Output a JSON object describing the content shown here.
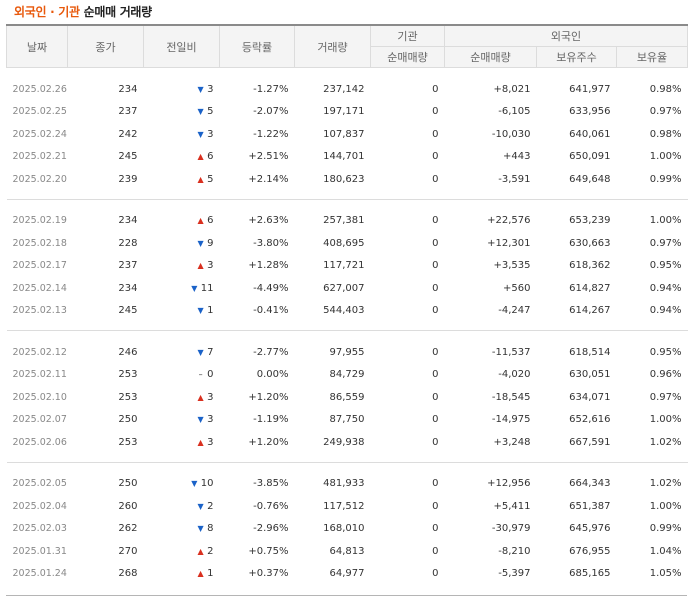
{
  "title": {
    "part1": "외국인 · 기관",
    "part2": " 순매매 거래량"
  },
  "headers": {
    "date": "날짜",
    "close": "종가",
    "change": "전일비",
    "rate": "등락률",
    "volume": "거래량",
    "institution": "기관",
    "foreign": "외국인",
    "inst_net": "순매매량",
    "foreign_net": "순매매량",
    "foreign_hold": "보유주수",
    "foreign_ratio": "보유율"
  },
  "colors": {
    "up": "#d9301f",
    "down": "#1a62c8",
    "title_accent": "#e8590c"
  },
  "groups": [
    {
      "rows": [
        {
          "date": "2025.02.26",
          "close": "234",
          "dir": "down",
          "change": "3",
          "rate": "-1.27%",
          "volume": "237,142",
          "inst": "0",
          "fnet": "+8,021",
          "fhold": "641,977",
          "fratio": "0.98%"
        },
        {
          "date": "2025.02.25",
          "close": "237",
          "dir": "down",
          "change": "5",
          "rate": "-2.07%",
          "volume": "197,171",
          "inst": "0",
          "fnet": "-6,105",
          "fhold": "633,956",
          "fratio": "0.97%"
        },
        {
          "date": "2025.02.24",
          "close": "242",
          "dir": "down",
          "change": "3",
          "rate": "-1.22%",
          "volume": "107,837",
          "inst": "0",
          "fnet": "-10,030",
          "fhold": "640,061",
          "fratio": "0.98%"
        },
        {
          "date": "2025.02.21",
          "close": "245",
          "dir": "up",
          "change": "6",
          "rate": "+2.51%",
          "volume": "144,701",
          "inst": "0",
          "fnet": "+443",
          "fhold": "650,091",
          "fratio": "1.00%"
        },
        {
          "date": "2025.02.20",
          "close": "239",
          "dir": "up",
          "change": "5",
          "rate": "+2.14%",
          "volume": "180,623",
          "inst": "0",
          "fnet": "-3,591",
          "fhold": "649,648",
          "fratio": "0.99%"
        }
      ]
    },
    {
      "rows": [
        {
          "date": "2025.02.19",
          "close": "234",
          "dir": "up",
          "change": "6",
          "rate": "+2.63%",
          "volume": "257,381",
          "inst": "0",
          "fnet": "+22,576",
          "fhold": "653,239",
          "fratio": "1.00%"
        },
        {
          "date": "2025.02.18",
          "close": "228",
          "dir": "down",
          "change": "9",
          "rate": "-3.80%",
          "volume": "408,695",
          "inst": "0",
          "fnet": "+12,301",
          "fhold": "630,663",
          "fratio": "0.97%"
        },
        {
          "date": "2025.02.17",
          "close": "237",
          "dir": "up",
          "change": "3",
          "rate": "+1.28%",
          "volume": "117,721",
          "inst": "0",
          "fnet": "+3,535",
          "fhold": "618,362",
          "fratio": "0.95%"
        },
        {
          "date": "2025.02.14",
          "close": "234",
          "dir": "down",
          "change": "11",
          "rate": "-4.49%",
          "volume": "627,007",
          "inst": "0",
          "fnet": "+560",
          "fhold": "614,827",
          "fratio": "0.94%"
        },
        {
          "date": "2025.02.13",
          "close": "245",
          "dir": "down",
          "change": "1",
          "rate": "-0.41%",
          "volume": "544,403",
          "inst": "0",
          "fnet": "-4,247",
          "fhold": "614,267",
          "fratio": "0.94%"
        }
      ]
    },
    {
      "rows": [
        {
          "date": "2025.02.12",
          "close": "246",
          "dir": "down",
          "change": "7",
          "rate": "-2.77%",
          "volume": "97,955",
          "inst": "0",
          "fnet": "-11,537",
          "fhold": "618,514",
          "fratio": "0.95%"
        },
        {
          "date": "2025.02.11",
          "close": "253",
          "dir": "flat",
          "change": "0",
          "rate": "0.00%",
          "volume": "84,729",
          "inst": "0",
          "fnet": "-4,020",
          "fhold": "630,051",
          "fratio": "0.96%"
        },
        {
          "date": "2025.02.10",
          "close": "253",
          "dir": "up",
          "change": "3",
          "rate": "+1.20%",
          "volume": "86,559",
          "inst": "0",
          "fnet": "-18,545",
          "fhold": "634,071",
          "fratio": "0.97%"
        },
        {
          "date": "2025.02.07",
          "close": "250",
          "dir": "down",
          "change": "3",
          "rate": "-1.19%",
          "volume": "87,750",
          "inst": "0",
          "fnet": "-14,975",
          "fhold": "652,616",
          "fratio": "1.00%"
        },
        {
          "date": "2025.02.06",
          "close": "253",
          "dir": "up",
          "change": "3",
          "rate": "+1.20%",
          "volume": "249,938",
          "inst": "0",
          "fnet": "+3,248",
          "fhold": "667,591",
          "fratio": "1.02%"
        }
      ]
    },
    {
      "rows": [
        {
          "date": "2025.02.05",
          "close": "250",
          "dir": "down",
          "change": "10",
          "rate": "-3.85%",
          "volume": "481,933",
          "inst": "0",
          "fnet": "+12,956",
          "fhold": "664,343",
          "fratio": "1.02%"
        },
        {
          "date": "2025.02.04",
          "close": "260",
          "dir": "down",
          "change": "2",
          "rate": "-0.76%",
          "volume": "117,512",
          "inst": "0",
          "fnet": "+5,411",
          "fhold": "651,387",
          "fratio": "1.00%"
        },
        {
          "date": "2025.02.03",
          "close": "262",
          "dir": "down",
          "change": "8",
          "rate": "-2.96%",
          "volume": "168,010",
          "inst": "0",
          "fnet": "-30,979",
          "fhold": "645,976",
          "fratio": "0.99%"
        },
        {
          "date": "2025.01.31",
          "close": "270",
          "dir": "up",
          "change": "2",
          "rate": "+0.75%",
          "volume": "64,813",
          "inst": "0",
          "fnet": "-8,210",
          "fhold": "676,955",
          "fratio": "1.04%"
        },
        {
          "date": "2025.01.24",
          "close": "268",
          "dir": "up",
          "change": "1",
          "rate": "+0.37%",
          "volume": "64,977",
          "inst": "0",
          "fnet": "-5,397",
          "fhold": "685,165",
          "fratio": "1.05%"
        }
      ]
    }
  ]
}
